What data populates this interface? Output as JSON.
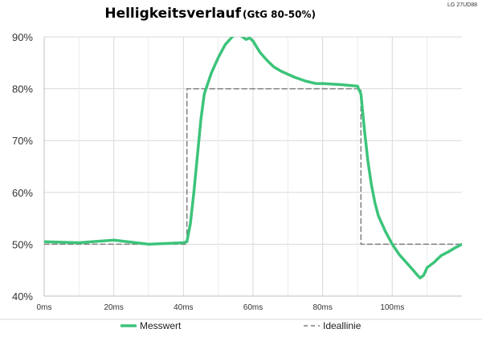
{
  "chart_data": {
    "type": "line",
    "title": "Helligkeitsverlauf",
    "subtitle": "(GtG 80-50%)",
    "model": "LG 27UD88",
    "xlabel": "",
    "ylabel": "",
    "xlim": [
      0,
      120
    ],
    "ylim": [
      40,
      90
    ],
    "x_ticks": [
      0,
      20,
      40,
      60,
      80,
      100
    ],
    "x_tick_labels": [
      "0ms",
      "20ms",
      "40ms",
      "60ms",
      "80ms",
      "100ms"
    ],
    "y_ticks": [
      40,
      50,
      60,
      70,
      80,
      90
    ],
    "y_tick_labels": [
      "40%",
      "50%",
      "60%",
      "70%",
      "80%",
      "90%"
    ],
    "grid": true,
    "legend_position": "bottom",
    "series": [
      {
        "name": "Messwert",
        "color": "#3cc47a",
        "style": "solid",
        "x": [
          0,
          10,
          20,
          30,
          40,
          41,
          42,
          43,
          44,
          45,
          46,
          48,
          50,
          52,
          54,
          55,
          56,
          57,
          58,
          59,
          60,
          62,
          64,
          66,
          68,
          70,
          72,
          75,
          78,
          80,
          85,
          90,
          91,
          92,
          93,
          94,
          95,
          96,
          98,
          100,
          102,
          104,
          106,
          107,
          108,
          109,
          110,
          112,
          114,
          116,
          118,
          120
        ],
        "y": [
          50.5,
          50.3,
          50.8,
          50.0,
          50.3,
          50.5,
          54,
          60,
          67,
          74,
          79,
          83,
          86,
          88.5,
          90,
          90.5,
          90.5,
          90,
          89.5,
          89.8,
          89.2,
          87,
          85.5,
          84.2,
          83.4,
          82.8,
          82.2,
          81.5,
          81,
          81,
          80.8,
          80.5,
          79,
          72,
          66,
          61.5,
          58,
          55.5,
          52.5,
          50,
          48,
          46.5,
          45,
          44.2,
          43.5,
          44,
          45.5,
          46.5,
          47.8,
          48.5,
          49.3,
          50
        ]
      },
      {
        "name": "Ideallinie",
        "color": "#7f7f7f",
        "style": "dashed",
        "x": [
          0,
          41,
          41,
          91,
          91,
          120
        ],
        "y": [
          50,
          50,
          80,
          80,
          50,
          50
        ]
      }
    ]
  }
}
